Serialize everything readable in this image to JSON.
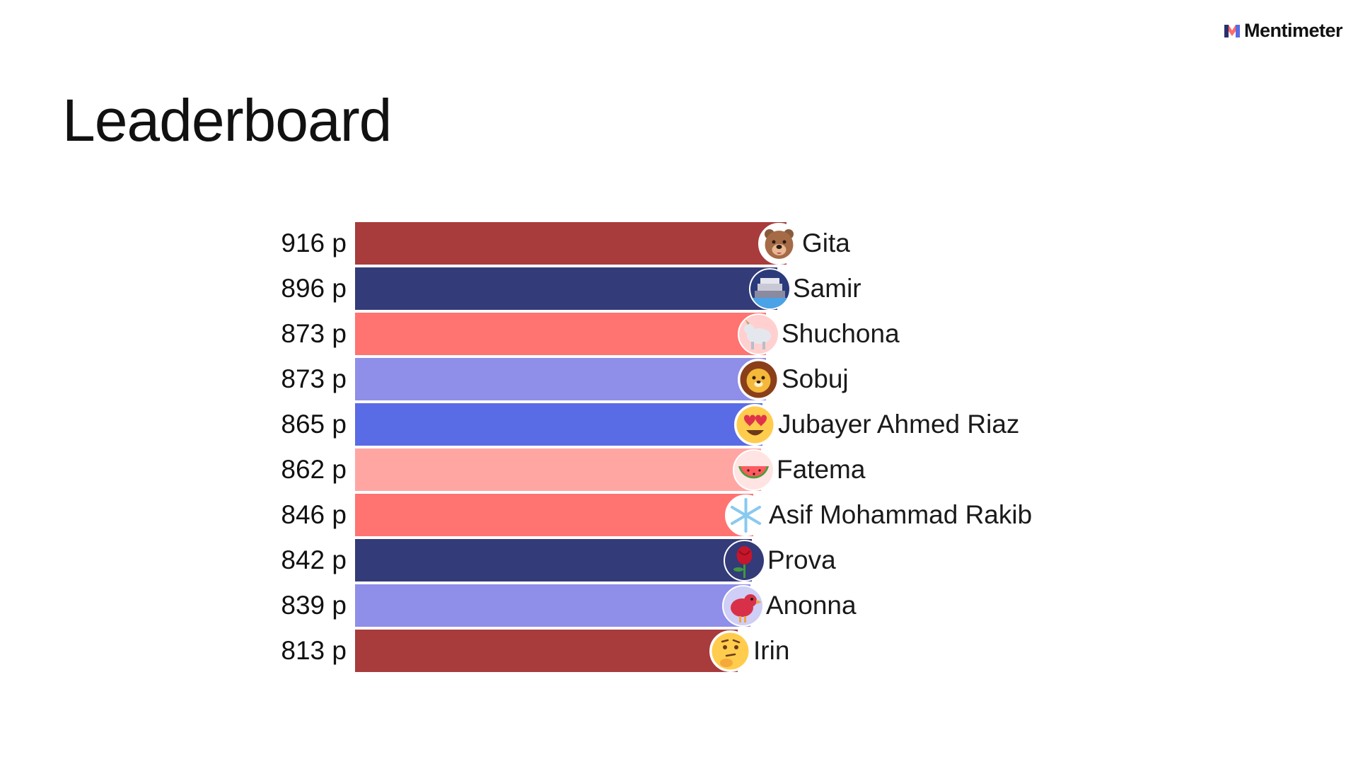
{
  "brand": {
    "name": "Mentimeter"
  },
  "title": "Leaderboard",
  "leaderboard": [
    {
      "score": "916 p",
      "points": 916,
      "name": "Gita",
      "color": "#a83b3b",
      "avatar": "bear-face-icon"
    },
    {
      "score": "896 p",
      "points": 896,
      "name": "Samir",
      "color": "#333b78",
      "avatar": "ship-icon"
    },
    {
      "score": "873 p",
      "points": 873,
      "name": "Shuchona",
      "color": "#ff7370",
      "avatar": "goat-icon"
    },
    {
      "score": "873 p",
      "points": 873,
      "name": "Sobuj",
      "color": "#8f8ee8",
      "avatar": "lion-face-icon"
    },
    {
      "score": "865 p",
      "points": 865,
      "name": "Jubayer Ahmed Riaz",
      "color": "#5a6be6",
      "avatar": "heart-eyes-face-icon"
    },
    {
      "score": "862 p",
      "points": 862,
      "name": "Fatema",
      "color": "#ffa6a3",
      "avatar": "watermelon-icon"
    },
    {
      "score": "846 p",
      "points": 846,
      "name": "Asif Mohammad Rakib",
      "color": "#ff7370",
      "avatar": "snowflake-icon"
    },
    {
      "score": "842 p",
      "points": 842,
      "name": "Prova",
      "color": "#333b78",
      "avatar": "rose-icon"
    },
    {
      "score": "839 p",
      "points": 839,
      "name": "Anonna",
      "color": "#8f8ee8",
      "avatar": "red-bird-icon"
    },
    {
      "score": "813 p",
      "points": 813,
      "name": "Irin",
      "color": "#a83b3b",
      "avatar": "thinking-face-icon"
    }
  ]
}
